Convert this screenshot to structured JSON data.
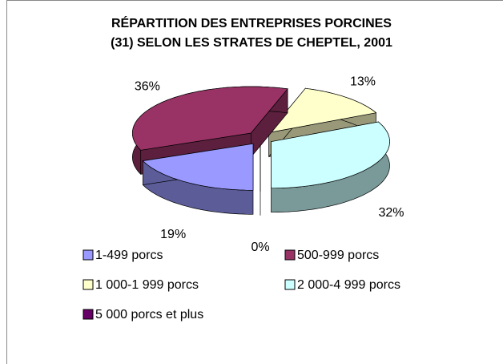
{
  "chart_data": {
    "type": "pie3d",
    "title": [
      "RÉPARTITION DES ENTREPRISES PORCINES",
      "(31) SELON LES STRATES DE CHEPTEL, 2001"
    ],
    "categories": [
      "1-499 porcs",
      "500-999 porcs",
      "1 000-1 999 porcs",
      "2 000-4 999 porcs",
      "5 000 porcs et plus"
    ],
    "values": [
      19,
      36,
      13,
      32,
      0
    ],
    "value_labels": [
      "19%",
      "36%",
      "13%",
      "32%",
      "0%"
    ],
    "colors": [
      "#9999ff",
      "#993366",
      "#ffffcc",
      "#ccffff",
      "#660066"
    ],
    "legend": "bottom"
  }
}
